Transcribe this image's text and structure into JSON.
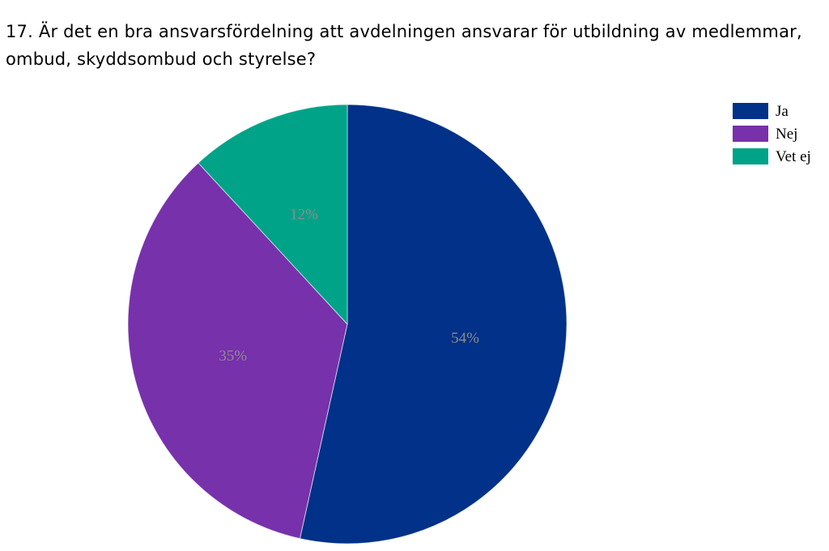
{
  "title": "17. Är det en bra ansvarsfördelning att avdelningen ansvarar för utbildning av medlemmar, ombud, skyddsombud och styrelse?",
  "chart_data": {
    "type": "pie",
    "title": "17. Är det en bra ansvarsfördelning att avdelningen ansvarar för utbildning av medlemmar, ombud, skyddsombud och styrelse?",
    "slices": [
      {
        "label": "Ja",
        "value": 54,
        "display": "54%",
        "color": "#013188"
      },
      {
        "label": "Nej",
        "value": 35,
        "display": "35%",
        "color": "#7731ab"
      },
      {
        "label": "Vet ej",
        "value": 12,
        "display": "12%",
        "color": "#00a388"
      }
    ],
    "start_angle_deg": 0,
    "direction": "clockwise",
    "legend_position": "top-right"
  }
}
